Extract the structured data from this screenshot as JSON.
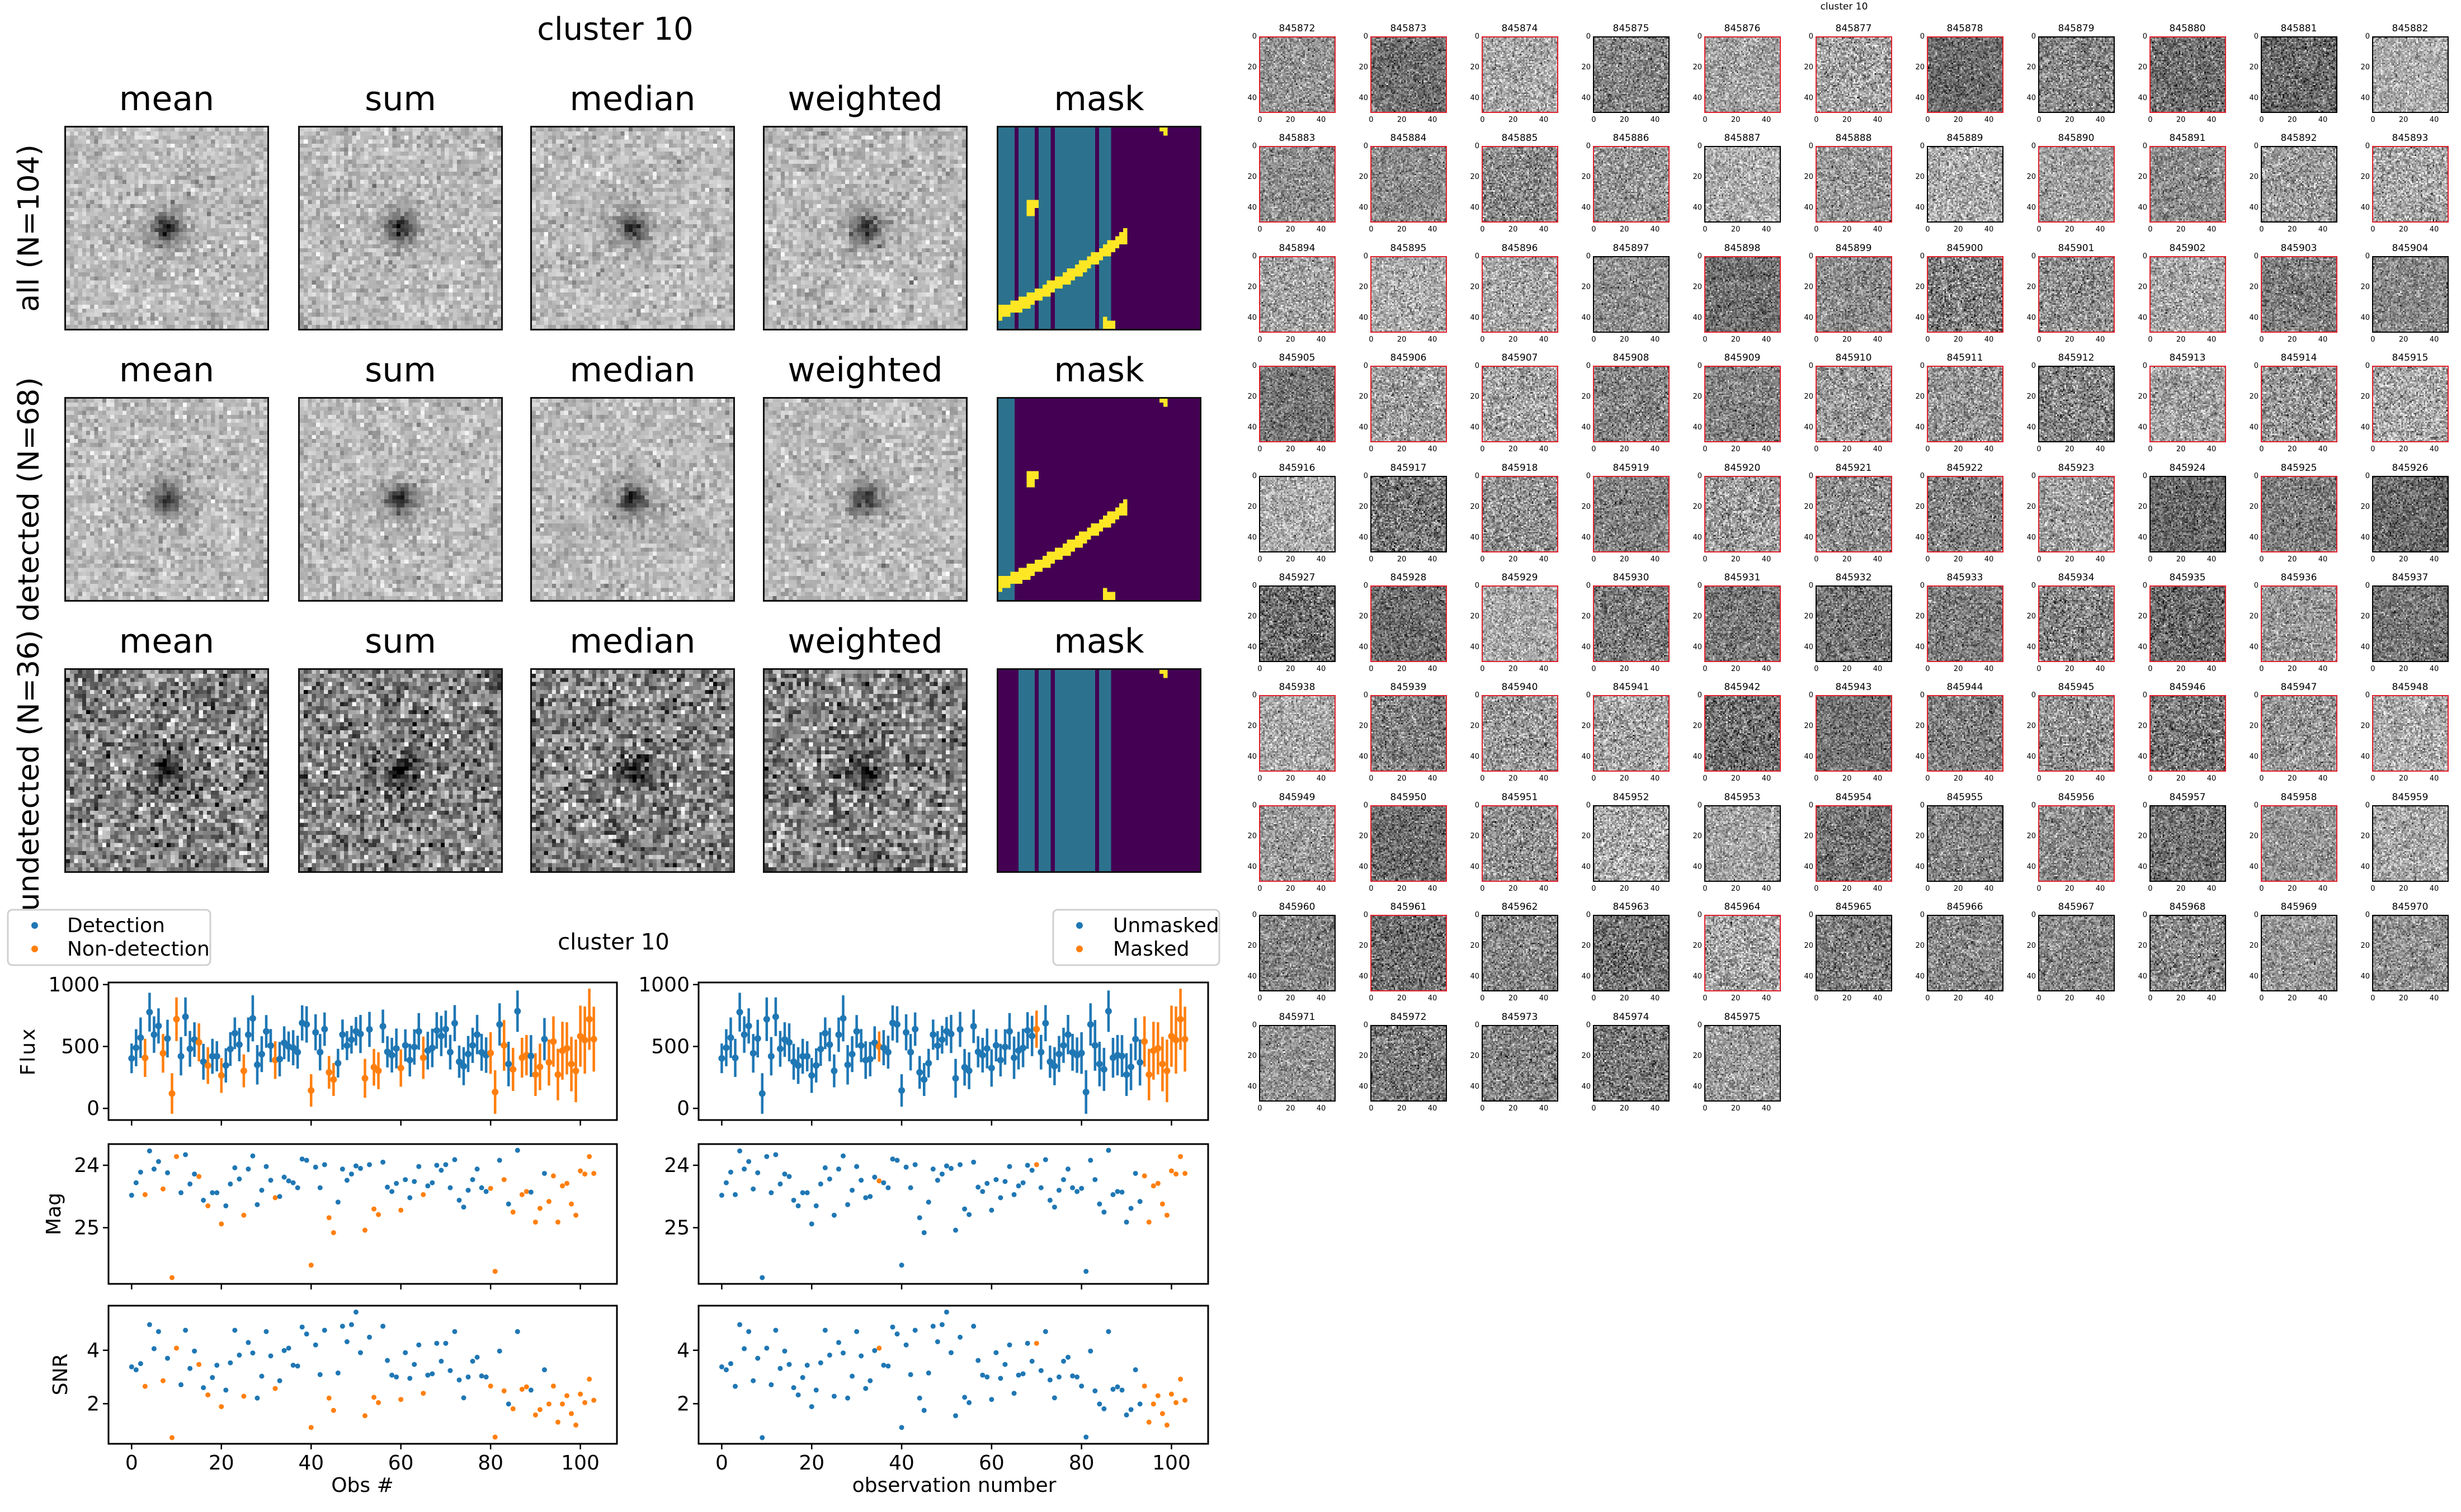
{
  "stack_figure": {
    "title": "cluster 10",
    "columns": [
      "mean",
      "sum",
      "median",
      "weighted",
      "mask"
    ],
    "rows": [
      "all (N=104)",
      "detected (N=68)",
      "undetected (N=36)"
    ]
  },
  "thumbnails": {
    "title": "cluster 10",
    "ids": [
      "845872",
      "845873",
      "845874",
      "845875",
      "845876",
      "845877",
      "845878",
      "845879",
      "845880",
      "845881",
      "845882",
      "845883",
      "845884",
      "845885",
      "845886",
      "845887",
      "845888",
      "845889",
      "845890",
      "845891",
      "845892",
      "845893",
      "845894",
      "845895",
      "845896",
      "845897",
      "845898",
      "845899",
      "845900",
      "845901",
      "845902",
      "845903",
      "845904",
      "845905",
      "845906",
      "845907",
      "845908",
      "845909",
      "845910",
      "845911",
      "845912",
      "845913",
      "845914",
      "845915",
      "845916",
      "845917",
      "845918",
      "845919",
      "845920",
      "845921",
      "845922",
      "845923",
      "845924",
      "845925",
      "845926",
      "845927",
      "845928",
      "845929",
      "845930",
      "845931",
      "845932",
      "845933",
      "845934",
      "845935",
      "845936",
      "845937",
      "845938",
      "845939",
      "845940",
      "845941",
      "845942",
      "845943",
      "845944",
      "845945",
      "845946",
      "845947",
      "845948",
      "845949",
      "845950",
      "845951",
      "845952",
      "845953",
      "845954",
      "845955",
      "845956",
      "845957",
      "845958",
      "845959",
      "845960",
      "845961",
      "845962",
      "845963",
      "845964",
      "845965",
      "845966",
      "845967",
      "845968",
      "845969",
      "845970",
      "845971",
      "845972",
      "845973",
      "845974",
      "845975"
    ],
    "ticks": [
      "0",
      "20",
      "40"
    ]
  },
  "colors": {
    "blue": "#1f77b4",
    "orange": "#ff7f0e",
    "detected_border": "#e0202c",
    "mask_purple": "#440154",
    "mask_teal": "#2c728e",
    "mask_yellow": "#fde725"
  },
  "chart_data": {
    "type": "scatter",
    "title": "cluster 10",
    "x": [
      0,
      1,
      2,
      3,
      4,
      5,
      6,
      7,
      8,
      9,
      10,
      11,
      12,
      13,
      14,
      15,
      16,
      17,
      18,
      19,
      20,
      21,
      22,
      23,
      24,
      25,
      26,
      27,
      28,
      29,
      30,
      31,
      32,
      33,
      34,
      35,
      36,
      37,
      38,
      39,
      40,
      41,
      42,
      43,
      44,
      45,
      46,
      47,
      48,
      49,
      50,
      51,
      52,
      53,
      54,
      55,
      56,
      57,
      58,
      59,
      60,
      61,
      62,
      63,
      64,
      65,
      66,
      67,
      68,
      69,
      70,
      71,
      72,
      73,
      74,
      75,
      76,
      77,
      78,
      79,
      80,
      81,
      82,
      83,
      84,
      85,
      86,
      87,
      88,
      89,
      90,
      91,
      92,
      93,
      94,
      95,
      96,
      97,
      98,
      99,
      100,
      101,
      102,
      103
    ],
    "flux": [
      404,
      490,
      571,
      408,
      777,
      596,
      666,
      445,
      564,
      120,
      720,
      421,
      740,
      481,
      556,
      533,
      377,
      346,
      421,
      421,
      266,
      347,
      479,
      607,
      515,
      303,
      595,
      727,
      352,
      438,
      622,
      507,
      390,
      398,
      530,
      499,
      490,
      454,
      690,
      678,
      145,
      614,
      454,
      640,
      291,
      233,
      365,
      596,
      507,
      555,
      623,
      601,
      243,
      638,
      332,
      304,
      663,
      457,
      430,
      484,
      326,
      509,
      390,
      496,
      622,
      409,
      467,
      488,
      629,
      585,
      640,
      454,
      688,
      377,
      341,
      439,
      509,
      596,
      453,
      430,
      447,
      132,
      678,
      509,
      358,
      315,
      785,
      409,
      430,
      423,
      273,
      335,
      559,
      371,
      540,
      273,
      466,
      485,
      358,
      303,
      583,
      552,
      720,
      559
    ],
    "flux_err": [
      120,
      150,
      163,
      154,
      157,
      147,
      142,
      156,
      152,
      164,
      176,
      155,
      156,
      145,
      140,
      154,
      145,
      148,
      141,
      122,
      141,
      138,
      136,
      128,
      135,
      133,
      139,
      186,
      159,
      145,
      132,
      134,
      152,
      139,
      133,
      122,
      142,
      133,
      142,
      147,
      131,
      146,
      147,
      135,
      132,
      133,
      116,
      122,
      117,
      112,
      115,
      154,
      157,
      142,
      148,
      149,
      135,
      126,
      140,
      161,
      151,
      130,
      132,
      143,
      148,
      171,
      152,
      156,
      148,
      163,
      150,
      140,
      146,
      130,
      154,
      146,
      142,
      159,
      149,
      143,
      168,
      176,
      171,
      205,
      180,
      174,
      167,
      161,
      163,
      169,
      173,
      188,
      171,
      186,
      203,
      208,
      234,
      211,
      220,
      253,
      247,
      271,
      247,
      262
    ],
    "mag": [
      24.48,
      24.28,
      24.11,
      24.47,
      23.77,
      24.06,
      23.94,
      24.38,
      24.12,
      25.8,
      23.86,
      24.44,
      23.83,
      24.3,
      24.14,
      24.18,
      24.56,
      24.65,
      24.44,
      24.44,
      24.94,
      24.65,
      24.3,
      24.04,
      24.22,
      24.8,
      24.06,
      23.85,
      24.63,
      24.4,
      24.02,
      24.24,
      24.52,
      24.5,
      24.19,
      24.25,
      24.28,
      24.36,
      23.9,
      23.92,
      25.6,
      24.03,
      24.36,
      23.99,
      24.84,
      25.08,
      24.59,
      24.06,
      24.24,
      24.14,
      24.01,
      24.05,
      25.04,
      23.99,
      24.7,
      24.79,
      23.95,
      24.35,
      24.42,
      24.29,
      24.72,
      24.23,
      24.52,
      24.26,
      24.02,
      24.47,
      24.33,
      24.28,
      24.0,
      24.08,
      23.99,
      24.36,
      23.91,
      24.56,
      24.67,
      24.4,
      24.23,
      24.06,
      24.36,
      24.42,
      24.37,
      25.7,
      23.92,
      24.23,
      24.62,
      24.75,
      23.76,
      24.47,
      24.42,
      24.43,
      24.91,
      24.69,
      24.13,
      24.58,
      24.17,
      24.91,
      24.33,
      24.29,
      24.62,
      24.8,
      24.09,
      24.14,
      23.86,
      24.13
    ],
    "snr": [
      3.38,
      3.27,
      3.5,
      2.65,
      4.96,
      4.06,
      4.7,
      2.86,
      3.7,
      0.73,
      4.08,
      2.71,
      4.75,
      3.32,
      3.97,
      3.47,
      2.6,
      2.33,
      2.98,
      3.44,
      1.89,
      2.51,
      3.53,
      4.75,
      3.82,
      2.28,
      4.29,
      3.9,
      2.21,
      3.03,
      4.7,
      3.79,
      2.57,
      2.86,
      3.99,
      4.08,
      3.44,
      3.41,
      4.87,
      4.61,
      1.11,
      4.2,
      3.09,
      4.75,
      2.21,
      1.75,
      3.15,
      4.9,
      4.32,
      4.96,
      5.43,
      3.91,
      1.55,
      4.49,
      2.24,
      2.04,
      4.9,
      3.62,
      3.07,
      3.0,
      2.16,
      3.91,
      2.95,
      3.47,
      4.2,
      2.39,
      3.07,
      3.12,
      4.26,
      3.59,
      4.26,
      3.24,
      4.7,
      2.89,
      2.22,
      3.0,
      3.59,
      3.74,
      3.04,
      3.0,
      2.66,
      0.75,
      3.97,
      2.48,
      1.99,
      1.81,
      4.7,
      2.54,
      2.63,
      2.51,
      1.58,
      1.78,
      3.27,
      1.99,
      2.66,
      1.31,
      1.99,
      2.3,
      1.63,
      1.2,
      2.36,
      2.04,
      2.92,
      2.13
    ],
    "detected": [
      1,
      1,
      1,
      0,
      1,
      1,
      1,
      0,
      1,
      0,
      0,
      1,
      1,
      1,
      1,
      0,
      1,
      0,
      1,
      1,
      0,
      1,
      1,
      1,
      1,
      0,
      1,
      1,
      1,
      1,
      1,
      1,
      0,
      1,
      1,
      1,
      1,
      1,
      1,
      1,
      0,
      1,
      1,
      1,
      0,
      0,
      1,
      1,
      1,
      1,
      1,
      1,
      0,
      1,
      0,
      0,
      1,
      1,
      1,
      1,
      0,
      1,
      1,
      1,
      1,
      0,
      1,
      1,
      1,
      1,
      1,
      1,
      1,
      1,
      1,
      1,
      1,
      1,
      1,
      1,
      0,
      0,
      1,
      0,
      1,
      0,
      1,
      0,
      0,
      1,
      0,
      0,
      1,
      0,
      0,
      0,
      0,
      0,
      0,
      0,
      0,
      0,
      0,
      0
    ],
    "masked": [
      0,
      0,
      0,
      0,
      0,
      0,
      0,
      0,
      0,
      0,
      0,
      0,
      0,
      0,
      0,
      0,
      0,
      0,
      0,
      0,
      0,
      0,
      0,
      0,
      0,
      0,
      0,
      0,
      0,
      0,
      0,
      0,
      0,
      0,
      0,
      1,
      0,
      0,
      0,
      0,
      0,
      0,
      0,
      0,
      0,
      0,
      0,
      0,
      0,
      0,
      0,
      0,
      0,
      0,
      0,
      0,
      0,
      0,
      0,
      0,
      0,
      0,
      0,
      0,
      0,
      0,
      0,
      0,
      0,
      0,
      1,
      0,
      0,
      0,
      0,
      0,
      0,
      0,
      0,
      0,
      0,
      0,
      0,
      0,
      0,
      0,
      0,
      0,
      0,
      0,
      0,
      0,
      0,
      0,
      1,
      1,
      1,
      1,
      1,
      1,
      1,
      1,
      1,
      1
    ],
    "xlim": [
      -5.15,
      108.15
    ],
    "xticks": [
      0,
      20,
      40,
      60,
      80,
      100
    ],
    "panels": [
      {
        "ylabel": "Flux",
        "yticks": [
          0,
          500,
          1000
        ],
        "ylim": [
          -94,
          1017
        ],
        "errorbars": true
      },
      {
        "ylabel": "Mag",
        "yticks": [
          24,
          25
        ],
        "ylim": [
          25.9,
          23.66
        ],
        "inverted": true
      },
      {
        "ylabel": "SNR",
        "yticks": [
          2,
          4
        ],
        "ylim": [
          0.5,
          5.67
        ]
      }
    ],
    "left": {
      "xlabel": "Obs #",
      "color_by": "detected",
      "legend": [
        "Detection",
        "Non-detection"
      ],
      "legend_placement": "top-left"
    },
    "right": {
      "xlabel": "observation number",
      "color_by": "masked",
      "legend": [
        "Unmasked",
        "Masked"
      ],
      "legend_placement": "top-right"
    },
    "grid": false
  }
}
